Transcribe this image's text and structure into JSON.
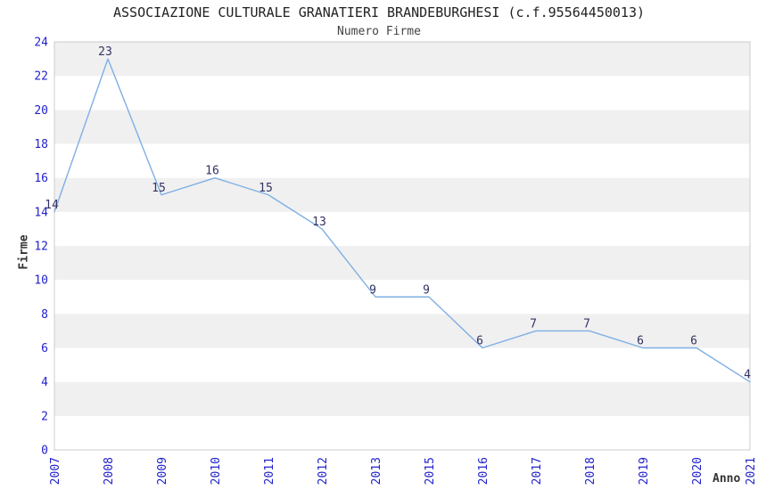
{
  "chart_data": {
    "type": "line",
    "title": "ASSOCIAZIONE CULTURALE GRANATIERI BRANDEBURGHESI (c.f.95564450013)",
    "subtitle": "Numero Firme",
    "xlabel": "Anno",
    "ylabel": "Firme",
    "categories": [
      "2007",
      "2008",
      "2009",
      "2010",
      "2011",
      "2012",
      "2013",
      "2015",
      "2016",
      "2017",
      "2018",
      "2019",
      "2020",
      "2021"
    ],
    "values": [
      14,
      23,
      15,
      16,
      15,
      13,
      9,
      9,
      6,
      7,
      7,
      6,
      6,
      4
    ],
    "ylim": [
      0,
      24
    ],
    "ytick_step": 2,
    "x_tick_rotation": -90,
    "grid": "alternating-horizontal-bands",
    "legend": "none",
    "data_labels_shown": true,
    "colors": {
      "line": "#7fafe5",
      "tick_labels": "#2222cc",
      "data_labels": "#333366",
      "band_gray": "#f0f0f0",
      "band_white": "#ffffff",
      "plot_border": "#cccccc",
      "title_text": "#222222",
      "subtitle_text": "#444444",
      "axis_titles": "#333333",
      "background": "#ffffff"
    }
  }
}
